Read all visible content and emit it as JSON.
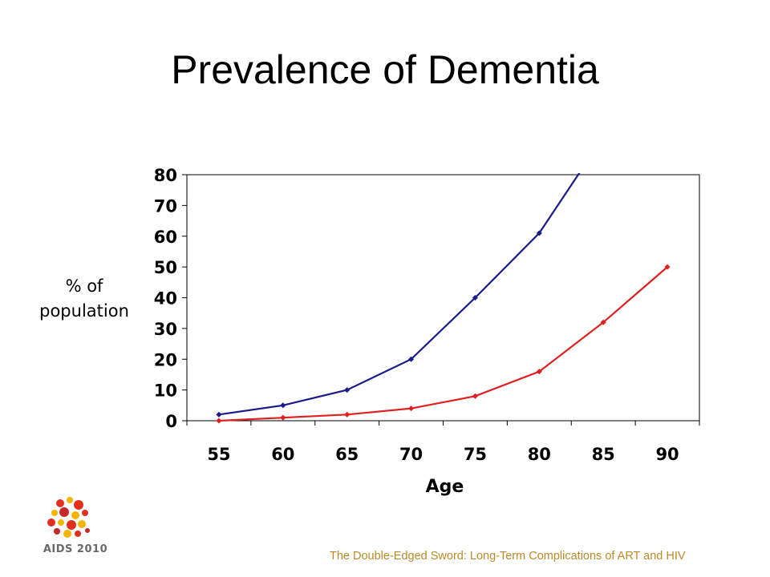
{
  "slide": {
    "title": "Prevalence of Dementia",
    "ylabel_line1": "% of",
    "ylabel_line2": "population",
    "footer": "The Double-Edged Sword: Long-Term Complications of ART and HIV",
    "logo_text": "AIDS 2010"
  },
  "chart_data": {
    "type": "line",
    "title": "",
    "xlabel": "Age",
    "ylabel": "% of population",
    "x": [
      55,
      60,
      65,
      70,
      75,
      80,
      85,
      90
    ],
    "yticks": [
      0,
      10,
      20,
      30,
      40,
      50,
      60,
      70,
      80
    ],
    "ylim": [
      0,
      80
    ],
    "grid": false,
    "legend": "none",
    "series": [
      {
        "color": "#1a1a8a",
        "x": [
          55,
          60,
          65,
          70,
          75,
          80,
          83.2
        ],
        "values": [
          2,
          5,
          10,
          20,
          40,
          61,
          81
        ]
      },
      {
        "color": "#e02020",
        "x": [
          55,
          60,
          65,
          70,
          75,
          80,
          85,
          90
        ],
        "values": [
          0,
          1,
          2,
          4,
          8,
          16,
          32,
          50
        ]
      }
    ]
  },
  "colors": {
    "footer": "#b98a2a",
    "axis": "#000000",
    "background": "#ffffff"
  }
}
